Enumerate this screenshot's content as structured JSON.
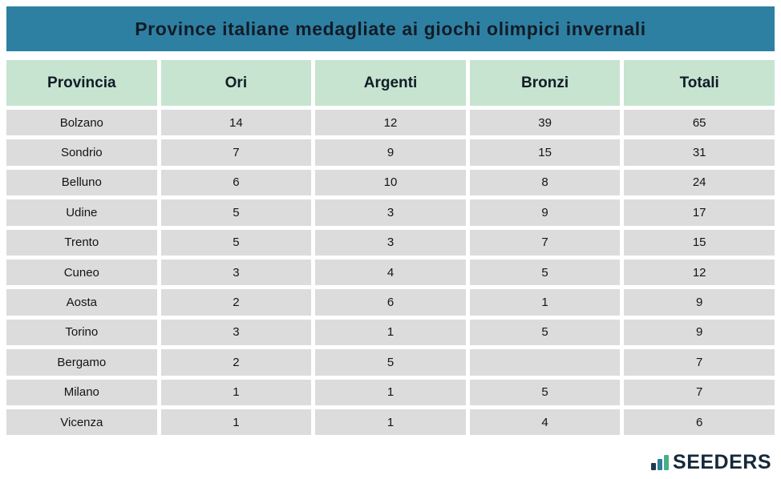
{
  "header": {
    "title": "Province italiane medagliate ai giochi olimpici invernali"
  },
  "table": {
    "columns": [
      "Provincia",
      "Ori",
      "Argenti",
      "Bronzi",
      "Totali"
    ],
    "rows": [
      [
        "Bolzano",
        "14",
        "12",
        "39",
        "65"
      ],
      [
        "Sondrio",
        "7",
        "9",
        "15",
        "31"
      ],
      [
        "Belluno",
        "6",
        "10",
        "8",
        "24"
      ],
      [
        "Udine",
        "5",
        "3",
        "9",
        "17"
      ],
      [
        "Trento",
        "5",
        "3",
        "7",
        "15"
      ],
      [
        "Cuneo",
        "3",
        "4",
        "5",
        "12"
      ],
      [
        "Aosta",
        "2",
        "6",
        "1",
        "9"
      ],
      [
        "Torino",
        "3",
        "1",
        "5",
        "9"
      ],
      [
        "Bergamo",
        "2",
        "5",
        "",
        "7"
      ],
      [
        "Milano",
        "1",
        "1",
        "5",
        "7"
      ],
      [
        "Vicenza",
        "1",
        "1",
        "4",
        "6"
      ]
    ]
  },
  "footer": {
    "brand": "SEEDERS",
    "logo_icon": "bar-chart-icon"
  },
  "colors": {
    "title_bar": "#2e80a3",
    "header_row_green": "#c6e4d0",
    "data_row_gray": "#dcdcdc",
    "title_text": "#121c26",
    "brand_navy": "#16293a",
    "logo_bar_navy": "#1b3a50",
    "logo_bar_teal": "#2e7f9e",
    "logo_bar_green": "#45b08c"
  },
  "chart_data": {
    "type": "table",
    "title": "Province italiane medagliate ai giochi olimpici invernali",
    "columns": [
      "Provincia",
      "Ori",
      "Argenti",
      "Bronzi",
      "Totali"
    ],
    "rows": [
      {
        "provincia": "Bolzano",
        "ori": 14,
        "argenti": 12,
        "bronzi": 39,
        "totali": 65
      },
      {
        "provincia": "Sondrio",
        "ori": 7,
        "argenti": 9,
        "bronzi": 15,
        "totali": 31
      },
      {
        "provincia": "Belluno",
        "ori": 6,
        "argenti": 10,
        "bronzi": 8,
        "totali": 24
      },
      {
        "provincia": "Udine",
        "ori": 5,
        "argenti": 3,
        "bronzi": 9,
        "totali": 17
      },
      {
        "provincia": "Trento",
        "ori": 5,
        "argenti": 3,
        "bronzi": 7,
        "totali": 15
      },
      {
        "provincia": "Cuneo",
        "ori": 3,
        "argenti": 4,
        "bronzi": 5,
        "totali": 12
      },
      {
        "provincia": "Aosta",
        "ori": 2,
        "argenti": 6,
        "bronzi": 1,
        "totali": 9
      },
      {
        "provincia": "Torino",
        "ori": 3,
        "argenti": 1,
        "bronzi": 5,
        "totali": 9
      },
      {
        "provincia": "Bergamo",
        "ori": 2,
        "argenti": 5,
        "bronzi": null,
        "totali": 7
      },
      {
        "provincia": "Milano",
        "ori": 1,
        "argenti": 1,
        "bronzi": 5,
        "totali": 7
      },
      {
        "provincia": "Vicenza",
        "ori": 1,
        "argenti": 1,
        "bronzi": 4,
        "totali": 6
      }
    ]
  }
}
